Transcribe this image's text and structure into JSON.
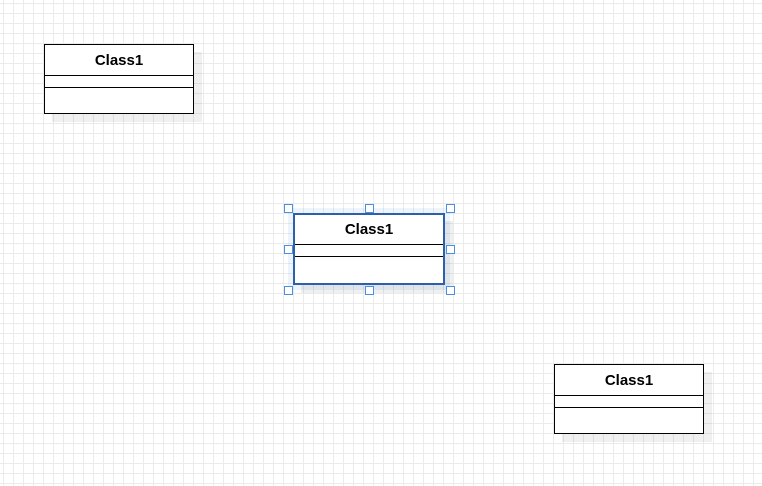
{
  "diagram": {
    "classes": [
      {
        "name": "Class1",
        "selected": false
      },
      {
        "name": "Class1",
        "selected": true
      },
      {
        "name": "Class1",
        "selected": false
      }
    ],
    "colors": {
      "grid": "#ebebeb",
      "border": "#000000",
      "selected_border": "#2e5fa8",
      "handle": "#4a90e2"
    }
  }
}
